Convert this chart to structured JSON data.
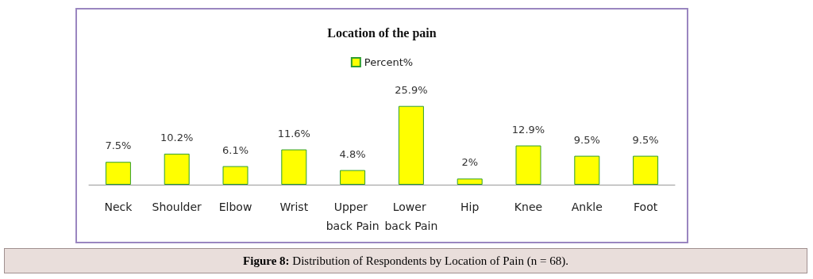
{
  "chart_data": {
    "type": "bar",
    "title": "Location of the pain",
    "categories": [
      "Neck",
      "Shoulder",
      "Elbow",
      "Wrist",
      "Upper back Pain",
      "Lower back Pain",
      "Hip",
      "Knee",
      "Ankle",
      "Foot"
    ],
    "series": [
      {
        "name": "Percent%",
        "color": "#ffff00",
        "values": [
          7.5,
          10.2,
          6.1,
          11.6,
          4.8,
          25.9,
          2,
          12.9,
          9.5,
          9.5
        ],
        "value_labels": [
          "7.5%",
          "10.2%",
          "6.1%",
          "11.6%",
          "4.8%",
          "25.9%",
          "2%",
          "12.9%",
          "9.5%",
          "9.5%"
        ]
      }
    ],
    "legend": "top",
    "grid": false,
    "tick_labels": "x",
    "annotations": [
      "Figure 8: Distribution of Respondents by Location of Pain (n = 68)."
    ]
  }
}
